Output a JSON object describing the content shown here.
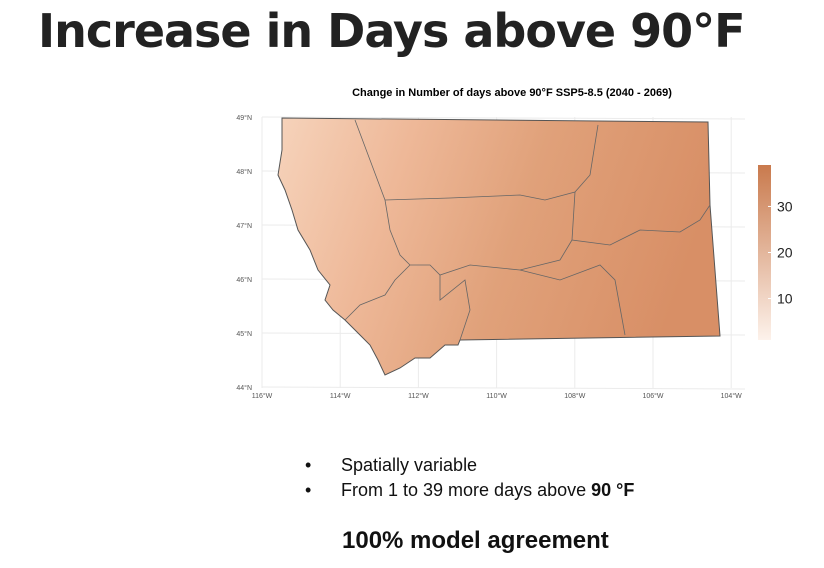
{
  "title": "Increase in Days above 90°F",
  "map": {
    "title": "Change in Number of days above 90°F SSP5-8.5 (2040 - 2069)",
    "lat_labels": [
      "49°N",
      "48°N",
      "47°N",
      "46°N",
      "45°N",
      "44°N"
    ],
    "lon_labels": [
      "116°W",
      "114°W",
      "112°W",
      "110°W",
      "108°W",
      "106°W",
      "104°W"
    ],
    "colorbar": {
      "range": [
        1,
        39
      ],
      "ticks": [
        10,
        20,
        30
      ],
      "colors": [
        "#fdf2eb",
        "#c97a4d"
      ]
    }
  },
  "bullets": [
    {
      "text": "Spatially variable"
    },
    {
      "text": "From 1 to 39 more days above",
      "bold": "90 °F"
    }
  ],
  "footer": "100% model agreement"
}
